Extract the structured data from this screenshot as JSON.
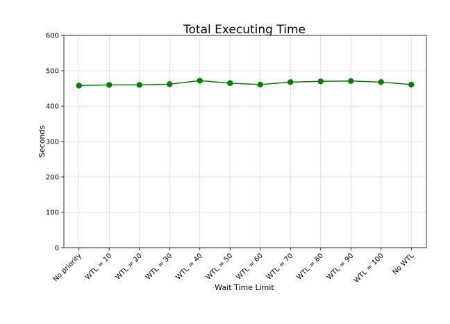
{
  "chart_data": {
    "type": "line",
    "title": "Total Executing Time",
    "xlabel": "Wait Time Limit",
    "ylabel": "Seconds",
    "categories": [
      "No priority",
      "WTL = 10",
      "WTL = 20",
      "WTL = 30",
      "WTL = 40",
      "WTL = 50",
      "WTL = 60",
      "WTL = 70",
      "WTL = 80",
      "WTL = 90",
      "WTL = 100",
      "No WTL"
    ],
    "values": [
      458,
      460,
      460,
      462,
      472,
      465,
      461,
      468,
      470,
      471,
      468,
      461
    ],
    "ylim": [
      0,
      600
    ],
    "yticks": [
      "0",
      "100",
      "200",
      "300",
      "400",
      "500",
      "600"
    ],
    "grid": true,
    "legend": "none",
    "line_color": "#008000",
    "marker_color": "#008000"
  }
}
